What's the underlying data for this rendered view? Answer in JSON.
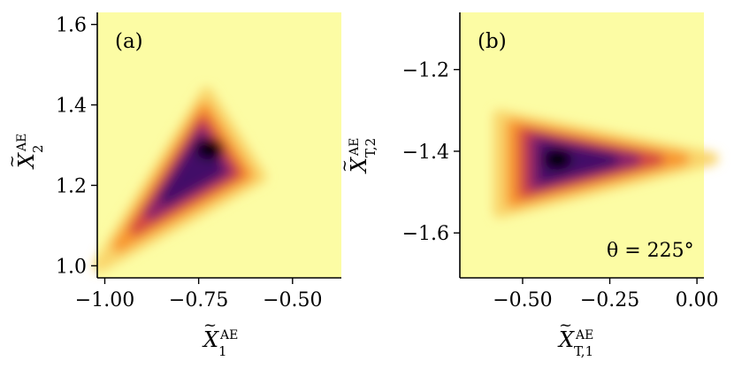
{
  "chart_data": [
    {
      "type": "heatmap",
      "panel_label": "(a)",
      "xlabel": {
        "base": "X",
        "sup": "AE",
        "sub": "1"
      },
      "ylabel": {
        "base": "X",
        "sup": "AE",
        "sub": "2"
      },
      "xlim": [
        -1.02,
        -0.37
      ],
      "ylim": [
        0.97,
        1.63
      ],
      "x_ticks": [
        -1.0,
        -0.75,
        -0.5
      ],
      "x_tick_labels": [
        "−1.00",
        "−0.75",
        "−0.50"
      ],
      "y_ticks": [
        1.0,
        1.2,
        1.4,
        1.6
      ],
      "y_tick_labels": [
        "1.0",
        "1.2",
        "1.4",
        "1.6"
      ],
      "background_color": "#fcfca4",
      "density_regions": [
        {
          "shape": "triangle",
          "vertices": [
            [
              -0.96,
              1.05
            ],
            [
              -0.74,
              1.38
            ],
            [
              -0.63,
              1.22
            ]
          ],
          "note_level": "mid"
        }
      ],
      "peak": {
        "x": -0.72,
        "y": 1.29
      },
      "annotation": ""
    },
    {
      "type": "heatmap",
      "panel_label": "(b)",
      "xlabel": {
        "base": "X",
        "sup": "AE",
        "sub": "T,1"
      },
      "ylabel": {
        "base": "X",
        "sup": "AE",
        "sub": "T,2"
      },
      "xlim": [
        -0.68,
        0.02
      ],
      "ylim": [
        -1.71,
        -1.06
      ],
      "x_ticks": [
        -0.5,
        -0.25,
        0.0
      ],
      "x_tick_labels": [
        "−0.50",
        "−0.25",
        "0.00"
      ],
      "y_ticks": [
        -1.2,
        -1.4,
        -1.6
      ],
      "y_tick_labels": [
        "−1.2",
        "−1.4",
        "−1.6"
      ],
      "background_color": "#fcfca4",
      "density_regions": [
        {
          "shape": "triangle",
          "vertices": [
            [
              -0.52,
              -1.34
            ],
            [
              -0.52,
              -1.52
            ],
            [
              -0.05,
              -1.42
            ]
          ],
          "note_level": "mid"
        }
      ],
      "peak": {
        "x": -0.4,
        "y": -1.42
      },
      "annotation": "θ = 225°"
    }
  ],
  "colors": {
    "background": "#fcfca4",
    "low": "#f9d46a",
    "mid_low": "#f8962e",
    "mid": "#d44842",
    "mid_high": "#8a226a",
    "high": "#420a68",
    "peak": "#000004"
  }
}
